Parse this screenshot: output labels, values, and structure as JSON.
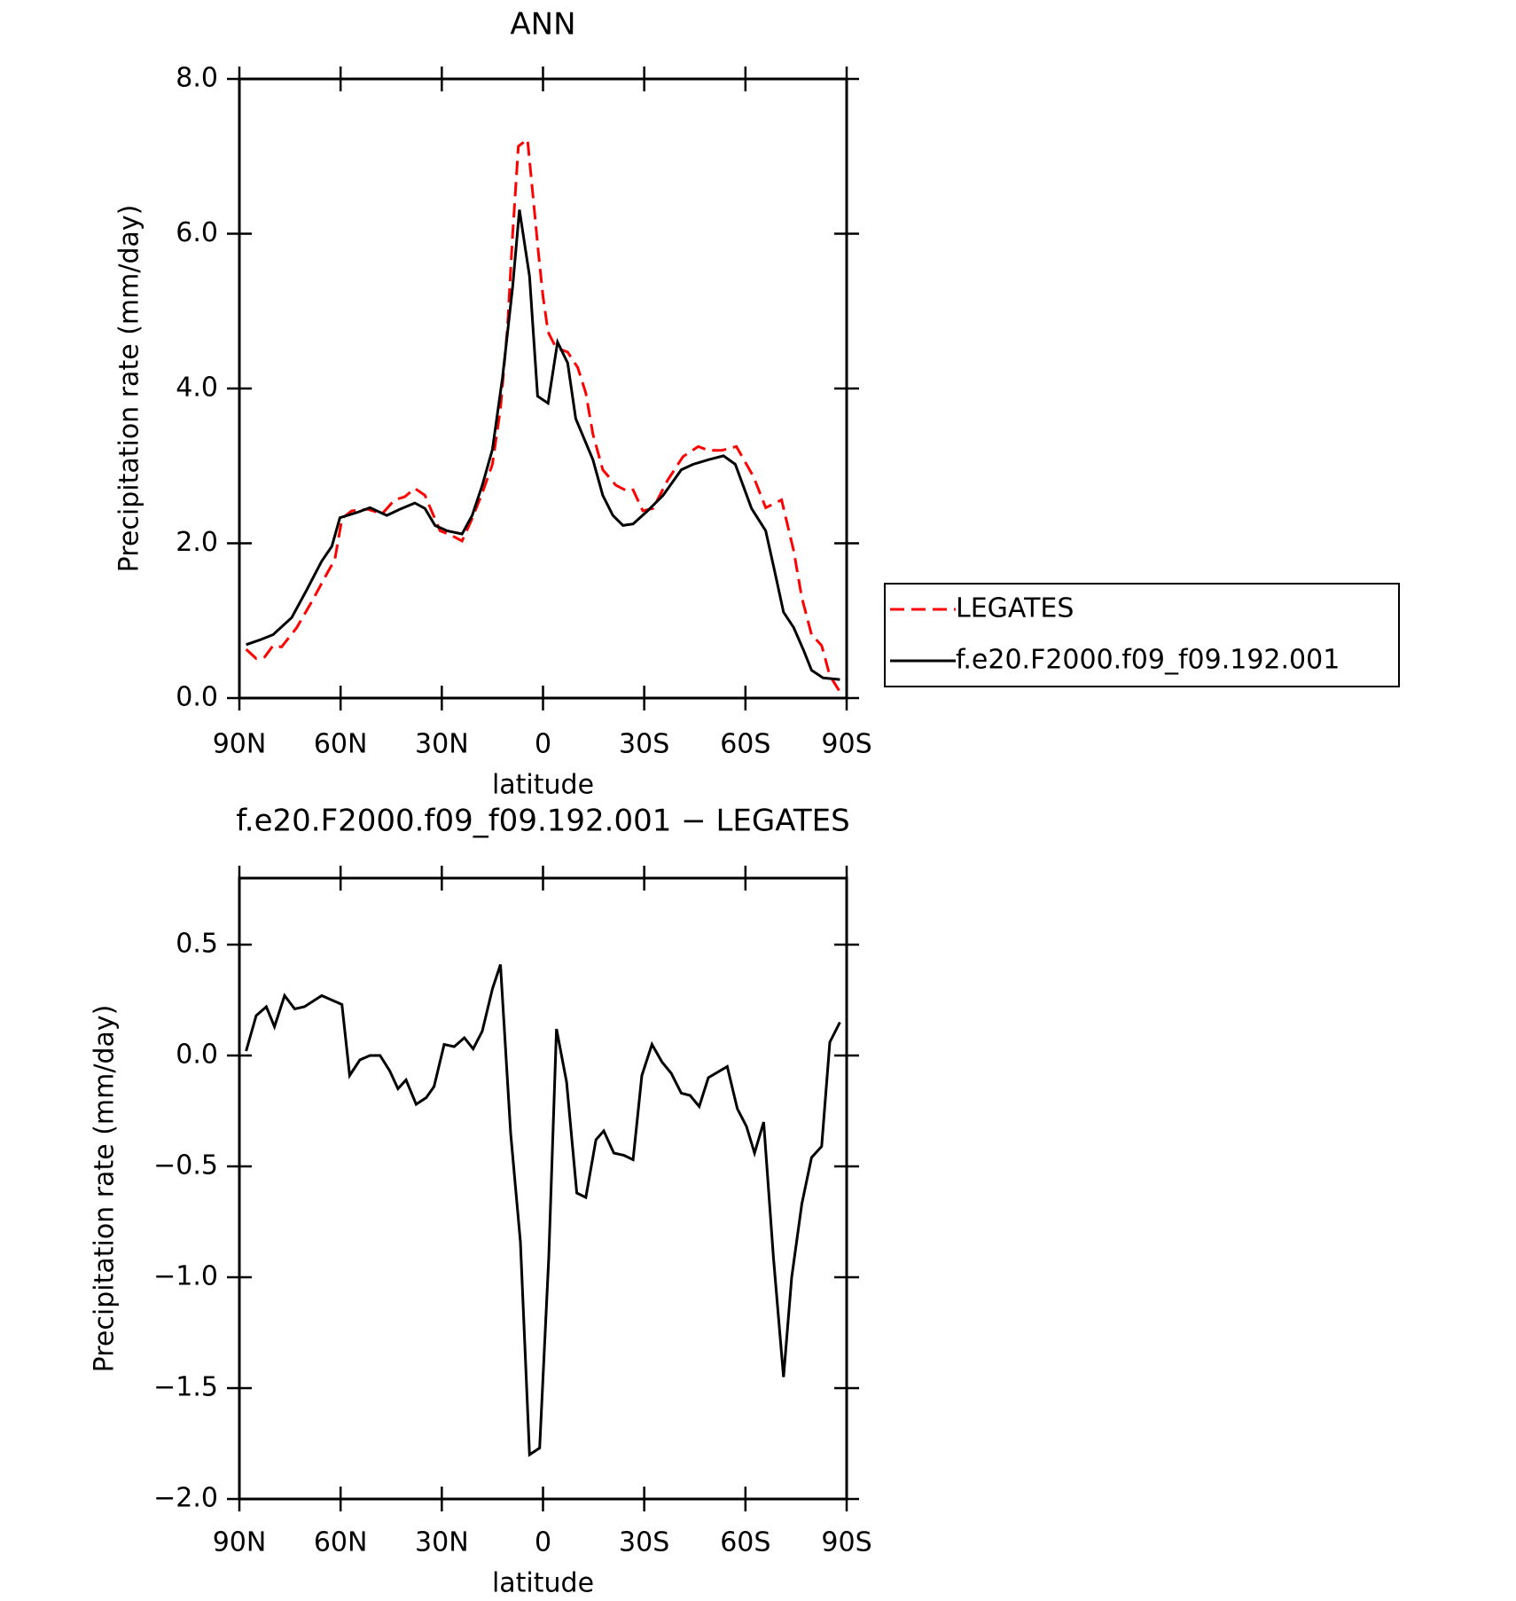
{
  "chart_data": [
    {
      "type": "line",
      "title": "ANN",
      "xlabel": "latitude",
      "ylabel": "Precipitation rate (mm/day)",
      "xlim": [
        90,
        -90
      ],
      "xticks": [
        {
          "value": 90,
          "label": "90N"
        },
        {
          "value": 60,
          "label": "60N"
        },
        {
          "value": 30,
          "label": "30N"
        },
        0,
        {
          "value": -30,
          "label": "30S"
        },
        {
          "value": -60,
          "label": "60S"
        },
        {
          "value": -90,
          "label": "90S"
        }
      ],
      "ylim": [
        0,
        8
      ],
      "yticks": [
        {
          "value": 0,
          "label": "0.0"
        },
        {
          "value": 2,
          "label": "2.0"
        },
        {
          "value": 4,
          "label": "4.0"
        },
        {
          "value": 6,
          "label": "6.0"
        },
        {
          "value": 8,
          "label": "8.0"
        }
      ],
      "legend": "outside-right",
      "series": [
        {
          "name": "LEGATES",
          "color": "#ff0000",
          "dashed": true,
          "x": [
            88,
            85,
            82.5,
            80,
            77.5,
            73,
            68.6,
            64,
            61.7,
            59.6,
            56.7,
            52,
            47.7,
            44,
            41,
            38,
            35,
            30.5,
            27.5,
            24,
            21,
            18,
            15,
            12.6,
            10.5,
            9,
            7.3,
            4.6,
            3,
            1.3,
            0,
            -1.5,
            -3.8,
            -7.3,
            -10.3,
            -12.7,
            -14.8,
            -17.7,
            -21.6,
            -25.2,
            -26.7,
            -29.6,
            -32.6,
            -37,
            -41.5,
            -46,
            -49,
            -52.9,
            -57.3,
            -62.4,
            -66,
            -70.7,
            -74.3,
            -76.7,
            -79.6,
            -82.6,
            -85,
            -88
          ],
          "values": [
            0.63,
            0.51,
            0.53,
            0.68,
            0.66,
            0.91,
            1.24,
            1.61,
            1.79,
            2.32,
            2.42,
            2.44,
            2.38,
            2.56,
            2.6,
            2.71,
            2.62,
            2.16,
            2.11,
            2.03,
            2.32,
            2.65,
            3.02,
            3.74,
            4.8,
            6.0,
            7.13,
            7.22,
            6.5,
            5.72,
            5.19,
            4.73,
            4.53,
            4.47,
            4.27,
            3.94,
            3.41,
            2.95,
            2.75,
            2.67,
            2.69,
            2.42,
            2.45,
            2.82,
            3.12,
            3.25,
            3.2,
            3.2,
            3.25,
            2.86,
            2.46,
            2.56,
            1.9,
            1.3,
            0.82,
            0.68,
            0.29,
            0.08
          ]
        },
        {
          "name": "f.e20.F2000.f09_f09.192.001",
          "color": "#000000",
          "x": [
            88,
            84,
            80,
            74.5,
            70,
            65.6,
            62.6,
            60.2,
            55,
            51.3,
            46.3,
            42.4,
            38,
            35,
            32,
            28.4,
            24,
            21,
            18,
            15,
            12,
            9,
            7,
            4,
            1.6,
            -1.5,
            -4.3,
            -7.3,
            -9.7,
            -14.8,
            -17.7,
            -20.7,
            -23.7,
            -26.7,
            -31,
            -35.6,
            -41,
            -44.5,
            -49,
            -53.5,
            -57,
            -61.8,
            -66,
            -69,
            -71.3,
            -74.3,
            -77.3,
            -79.6,
            -83,
            -88
          ],
          "values": [
            0.69,
            0.75,
            0.82,
            1.04,
            1.4,
            1.77,
            1.96,
            2.33,
            2.4,
            2.46,
            2.36,
            2.44,
            2.52,
            2.45,
            2.23,
            2.16,
            2.12,
            2.36,
            2.75,
            3.21,
            4.14,
            5.32,
            6.31,
            5.45,
            3.9,
            3.81,
            4.6,
            4.33,
            3.61,
            3.08,
            2.62,
            2.36,
            2.23,
            2.25,
            2.42,
            2.62,
            2.95,
            3.02,
            3.08,
            3.13,
            3.02,
            2.45,
            2.16,
            1.57,
            1.11,
            0.91,
            0.61,
            0.36,
            0.26,
            0.24
          ]
        }
      ]
    },
    {
      "type": "line",
      "title": "f.e20.F2000.f09_f09.192.001 − LEGATES",
      "xlabel": "latitude",
      "ylabel": "Precipitation rate (mm/day)",
      "xlim": [
        90,
        -90
      ],
      "xticks": [
        {
          "value": 90,
          "label": "90N"
        },
        {
          "value": 60,
          "label": "60N"
        },
        {
          "value": 30,
          "label": "30N"
        },
        0,
        {
          "value": -30,
          "label": "30S"
        },
        {
          "value": -60,
          "label": "60S"
        },
        {
          "value": -90,
          "label": "90S"
        }
      ],
      "ylim": [
        -2.0,
        0.8
      ],
      "yticks": [
        {
          "value": -2,
          "label": "−2.0"
        },
        {
          "value": -1.5,
          "label": "−1.5"
        },
        {
          "value": -1,
          "label": "−1.0"
        },
        {
          "value": -0.5,
          "label": "−0.5"
        },
        {
          "value": 0,
          "label": "0.0"
        },
        0.5
      ],
      "series": [
        {
          "color": "#000000",
          "x": [
            88,
            85,
            82,
            79.6,
            76.6,
            73.6,
            70.7,
            65.6,
            59.6,
            57.3,
            54.3,
            51.3,
            48.3,
            45.4,
            43,
            40.6,
            37.6,
            34.6,
            32.3,
            29.3,
            26.3,
            23.3,
            20.7,
            18,
            15,
            12.6,
            9.6,
            6.7,
            4,
            1,
            -1.7,
            -4,
            -7,
            -10,
            -12.7,
            -15.7,
            -18,
            -21,
            -24,
            -26.7,
            -29.3,
            -32.3,
            -35.3,
            -38,
            -41,
            -43.6,
            -46.3,
            -49,
            -54.6,
            -57.6,
            -60.3,
            -62.7,
            -65.4,
            -68.3,
            -71.3,
            -73.7,
            -76.7,
            -79.6,
            -82.6,
            -85,
            -88
          ],
          "values": [
            0.02,
            0.18,
            0.22,
            0.13,
            0.27,
            0.21,
            0.22,
            0.27,
            0.23,
            -0.09,
            -0.02,
            0,
            0,
            -0.07,
            -0.15,
            -0.11,
            -0.22,
            -0.19,
            -0.14,
            0.05,
            0.04,
            0.08,
            0.03,
            0.11,
            0.3,
            0.41,
            -0.35,
            -0.84,
            -1.8,
            -1.77,
            -0.91,
            0.12,
            -0.12,
            -0.62,
            -0.64,
            -0.38,
            -0.34,
            -0.44,
            -0.45,
            -0.47,
            -0.09,
            0.05,
            -0.03,
            -0.08,
            -0.17,
            -0.18,
            -0.23,
            -0.1,
            -0.05,
            -0.24,
            -0.32,
            -0.44,
            -0.3,
            -0.91,
            -1.45,
            -1,
            -0.67,
            -0.46,
            -0.41,
            0.06,
            0.15
          ]
        }
      ]
    }
  ]
}
